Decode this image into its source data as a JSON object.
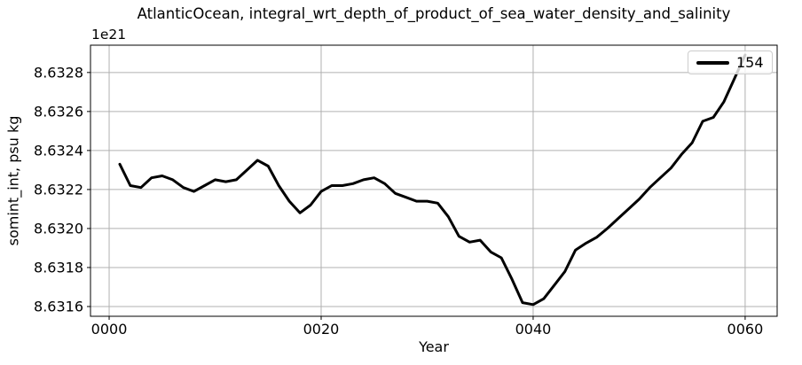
{
  "figure": {
    "title": "AtlanticOcean, integral_wrt_depth_of_product_of_sea_water_density_and_salinity",
    "offset_text": "1e21",
    "background_color": "#ffffff"
  },
  "legend": {
    "label": "154",
    "position": "upper-right"
  },
  "colors": {
    "line": "#000000",
    "grid": "#b0b0b0",
    "spine": "#000000",
    "text": "#000000"
  },
  "chart_data": {
    "type": "line",
    "title": "AtlanticOcean, integral_wrt_depth_of_product_of_sea_water_density_and_salinity",
    "xlabel": "Year",
    "ylabel": "somint_int, psu kg",
    "y_offset_factor": "1e21",
    "grid": true,
    "legend_position": "upper-right",
    "xlim": [
      -1.76,
      63.02
    ],
    "ylim": [
      8.63155,
      8.63294
    ],
    "x_tick_values": [
      0,
      20,
      40,
      60
    ],
    "x_tick_labels": [
      "0000",
      "0020",
      "0040",
      "0060"
    ],
    "y_tick_values": [
      8.6316,
      8.6318,
      8.632,
      8.6322,
      8.6324,
      8.6326,
      8.6328
    ],
    "y_tick_labels": [
      "8.6316",
      "8.6318",
      "8.6320",
      "8.6322",
      "8.6324",
      "8.6326",
      "8.6328"
    ],
    "line_width": 3,
    "series": [
      {
        "name": "154",
        "x": [
          1,
          2,
          3,
          4,
          5,
          6,
          7,
          8,
          9,
          10,
          11,
          12,
          13,
          14,
          15,
          16,
          17,
          18,
          19,
          20,
          21,
          22,
          23,
          24,
          25,
          26,
          27,
          28,
          29,
          30,
          31,
          32,
          33,
          34,
          35,
          36,
          37,
          38,
          39,
          40,
          41,
          42,
          43,
          44,
          45,
          46,
          47,
          48,
          49,
          50,
          51,
          52,
          53,
          54,
          55,
          56,
          57,
          58,
          59,
          60
        ],
        "y": [
          8.63233,
          8.63222,
          8.63221,
          8.63226,
          8.63227,
          8.63225,
          8.63221,
          8.63219,
          8.63222,
          8.63225,
          8.63224,
          8.63225,
          8.6323,
          8.63235,
          8.63232,
          8.63222,
          8.63214,
          8.63208,
          8.63212,
          8.63219,
          8.63222,
          8.63222,
          8.63223,
          8.63225,
          8.63226,
          8.63223,
          8.63218,
          8.63216,
          8.63214,
          8.63214,
          8.63213,
          8.63206,
          8.63196,
          8.63193,
          8.63194,
          8.63188,
          8.63185,
          8.63174,
          8.63162,
          8.63161,
          8.63164,
          8.63171,
          8.63178,
          8.63189,
          8.631925,
          8.631955,
          8.632,
          8.63205,
          8.6321,
          8.63215,
          8.63221,
          8.63226,
          8.63231,
          8.63238,
          8.63244,
          8.63255,
          8.63257,
          8.63265,
          8.63277,
          8.63289
        ]
      }
    ]
  }
}
